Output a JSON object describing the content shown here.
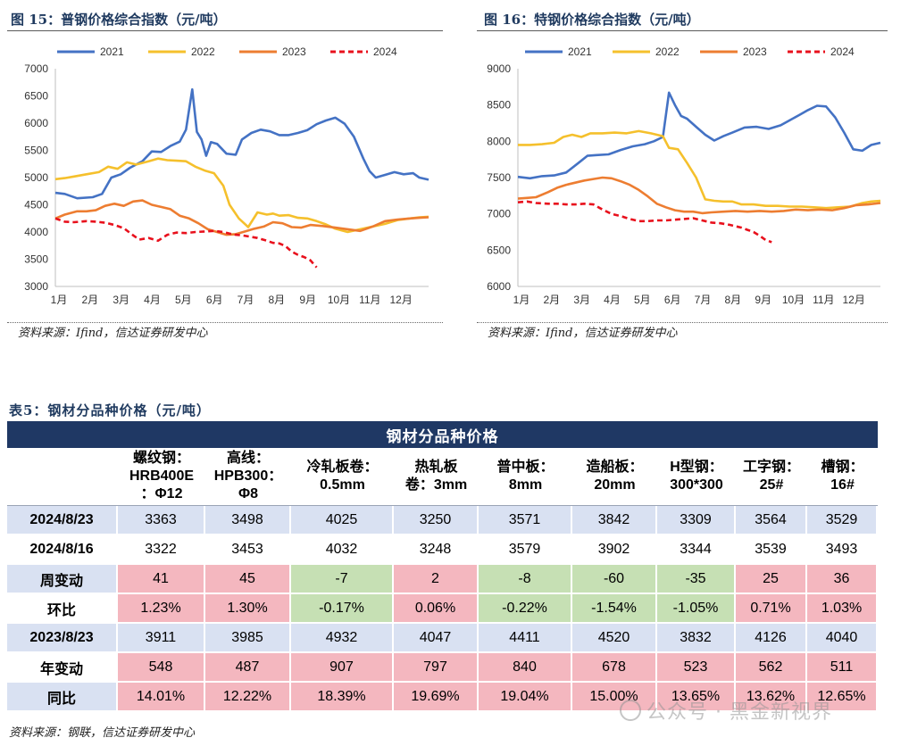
{
  "charts": [
    {
      "id": "fig15",
      "heading": "图 15：普钢价格综合指数（元/吨）",
      "source": "资料来源：Ifind，信达证券研发中心"
    },
    {
      "id": "fig16",
      "heading": "图 16：特钢价格综合指数（元/吨）",
      "source": "资料来源：Ifind，信达证券研发中心"
    }
  ],
  "chart_data": [
    {
      "type": "line",
      "title": "图 15：普钢价格综合指数（元/吨）",
      "xlabel": "",
      "ylabel": "元/吨",
      "ylim": [
        3000,
        7000
      ],
      "yticks": [
        "7000",
        "6500",
        "6000",
        "5500",
        "5000",
        "4500",
        "4000",
        "3500",
        "3000"
      ],
      "categories": [
        "1月",
        "2月",
        "3月",
        "4月",
        "5月",
        "6月",
        "7月",
        "8月",
        "9月",
        "10月",
        "11月",
        "12月"
      ],
      "legend": "top",
      "series": [
        {
          "name": "2021",
          "color": "#4472c4",
          "dash": false,
          "x": [
            0,
            0.3,
            0.7,
            1.2,
            1.5,
            1.8,
            2.1,
            2.4,
            2.8,
            3.1,
            3.4,
            3.7,
            4.0,
            4.2,
            4.4,
            4.55,
            4.7,
            4.85,
            5.0,
            5.2,
            5.5,
            5.8,
            6.0,
            6.3,
            6.6,
            6.9,
            7.2,
            7.5,
            7.8,
            8.1,
            8.4,
            8.7,
            9.0,
            9.3,
            9.6,
            9.9,
            10.1,
            10.3,
            10.6,
            10.9,
            11.2,
            11.5,
            11.7,
            12.0
          ],
          "values": [
            4720,
            4700,
            4620,
            4640,
            4700,
            5000,
            5060,
            5180,
            5300,
            5480,
            5470,
            5580,
            5660,
            5880,
            6620,
            5840,
            5700,
            5400,
            5650,
            5620,
            5440,
            5420,
            5700,
            5820,
            5880,
            5850,
            5780,
            5780,
            5820,
            5870,
            5980,
            6050,
            6100,
            5990,
            5750,
            5350,
            5120,
            5000,
            5050,
            5100,
            5060,
            5080,
            5000,
            4960
          ]
        },
        {
          "name": "2022",
          "color": "#f5c02c",
          "dash": false,
          "x": [
            0,
            0.3,
            0.6,
            1.0,
            1.4,
            1.7,
            2.0,
            2.3,
            2.6,
            3.0,
            3.3,
            3.6,
            3.9,
            4.2,
            4.5,
            4.8,
            5.1,
            5.4,
            5.6,
            5.9,
            6.2,
            6.5,
            6.8,
            7.0,
            7.2,
            7.5,
            7.8,
            8.1,
            8.4,
            8.7,
            9.0,
            9.4,
            9.8,
            10.2,
            10.6,
            11.0,
            11.4,
            11.7,
            12.0
          ],
          "values": [
            4970,
            4990,
            5020,
            5060,
            5100,
            5200,
            5160,
            5280,
            5240,
            5300,
            5350,
            5320,
            5310,
            5300,
            5200,
            5130,
            5080,
            4850,
            4500,
            4250,
            4090,
            4360,
            4320,
            4340,
            4300,
            4310,
            4260,
            4250,
            4200,
            4140,
            4060,
            4000,
            4050,
            4100,
            4150,
            4220,
            4250,
            4270,
            4280
          ]
        },
        {
          "name": "2023",
          "color": "#ed7d31",
          "dash": false,
          "x": [
            0,
            0.3,
            0.7,
            1.0,
            1.3,
            1.6,
            1.9,
            2.2,
            2.5,
            2.8,
            3.1,
            3.4,
            3.7,
            4.0,
            4.3,
            4.6,
            4.9,
            5.2,
            5.5,
            5.8,
            6.1,
            6.4,
            6.7,
            7.0,
            7.3,
            7.6,
            7.9,
            8.2,
            8.6,
            9.0,
            9.4,
            9.8,
            10.2,
            10.6,
            11.0,
            11.4,
            11.7,
            12.0
          ],
          "values": [
            4250,
            4320,
            4380,
            4380,
            4400,
            4480,
            4520,
            4480,
            4560,
            4580,
            4500,
            4460,
            4420,
            4300,
            4250,
            4160,
            4050,
            4000,
            3950,
            3960,
            4010,
            4060,
            4100,
            4180,
            4160,
            4090,
            4080,
            4130,
            4110,
            4080,
            4050,
            4020,
            4100,
            4200,
            4230,
            4250,
            4260,
            4270
          ]
        },
        {
          "name": "2024",
          "color": "#e8101c",
          "dash": true,
          "x": [
            0,
            0.3,
            0.6,
            1.0,
            1.3,
            1.6,
            1.9,
            2.2,
            2.5,
            2.7,
            3.0,
            3.3,
            3.6,
            3.9,
            4.2,
            4.5,
            4.8,
            5.1,
            5.4,
            5.6,
            5.8,
            6.0,
            6.2,
            6.5,
            6.8,
            7.0,
            7.2,
            7.4,
            7.6,
            7.8,
            8.0,
            8.2,
            8.4
          ],
          "values": [
            4250,
            4190,
            4180,
            4200,
            4190,
            4170,
            4130,
            4070,
            3940,
            3860,
            3890,
            3840,
            3950,
            3990,
            3980,
            4000,
            4010,
            4020,
            4000,
            3970,
            3950,
            3940,
            3920,
            3890,
            3840,
            3800,
            3790,
            3740,
            3640,
            3580,
            3540,
            3480,
            3350
          ]
        }
      ]
    },
    {
      "type": "line",
      "title": "图 16：特钢价格综合指数（元/吨）",
      "xlabel": "",
      "ylabel": "元/吨",
      "ylim": [
        6000,
        9000
      ],
      "yticks": [
        "9000",
        "8500",
        "8000",
        "7500",
        "7000",
        "6500",
        "6000"
      ],
      "categories": [
        "1月",
        "2月",
        "3月",
        "4月",
        "5月",
        "6月",
        "7月",
        "8月",
        "9月",
        "10月",
        "11月",
        "12月"
      ],
      "legend": "top",
      "series": [
        {
          "name": "2021",
          "color": "#4472c4",
          "dash": false,
          "x": [
            0,
            0.4,
            0.8,
            1.2,
            1.6,
            2.0,
            2.3,
            2.6,
            3.0,
            3.4,
            3.8,
            4.2,
            4.5,
            4.8,
            5.0,
            5.2,
            5.4,
            5.6,
            5.9,
            6.2,
            6.5,
            6.8,
            7.1,
            7.5,
            7.9,
            8.3,
            8.7,
            9.0,
            9.3,
            9.6,
            9.9,
            10.2,
            10.5,
            10.8,
            11.1,
            11.4,
            11.7,
            12.0
          ],
          "values": [
            7510,
            7490,
            7520,
            7530,
            7570,
            7700,
            7800,
            7810,
            7820,
            7880,
            7930,
            7960,
            8000,
            8060,
            8670,
            8500,
            8350,
            8310,
            8200,
            8090,
            8010,
            8070,
            8120,
            8190,
            8200,
            8170,
            8220,
            8290,
            8360,
            8430,
            8490,
            8480,
            8330,
            8120,
            7890,
            7870,
            7950,
            7980
          ]
        },
        {
          "name": "2022",
          "color": "#f5c02c",
          "dash": false,
          "x": [
            0,
            0.4,
            0.8,
            1.2,
            1.5,
            1.8,
            2.1,
            2.4,
            2.8,
            3.2,
            3.6,
            4.0,
            4.4,
            4.8,
            5.0,
            5.3,
            5.6,
            5.9,
            6.2,
            6.5,
            6.8,
            7.1,
            7.4,
            7.8,
            8.2,
            8.6,
            9.0,
            9.4,
            9.8,
            10.2,
            10.6,
            11.0,
            11.4,
            11.7,
            12.0
          ],
          "values": [
            7950,
            7950,
            7960,
            7980,
            8060,
            8090,
            8060,
            8110,
            8110,
            8120,
            8110,
            8140,
            8110,
            8070,
            7910,
            7890,
            7700,
            7500,
            7200,
            7180,
            7170,
            7170,
            7130,
            7130,
            7110,
            7110,
            7100,
            7100,
            7090,
            7080,
            7090,
            7100,
            7150,
            7170,
            7180
          ]
        },
        {
          "name": "2023",
          "color": "#ed7d31",
          "dash": false,
          "x": [
            0,
            0.3,
            0.6,
            1.0,
            1.3,
            1.6,
            1.9,
            2.2,
            2.5,
            2.8,
            3.1,
            3.4,
            3.7,
            4.0,
            4.3,
            4.6,
            4.9,
            5.2,
            5.5,
            5.8,
            6.1,
            6.4,
            6.8,
            7.2,
            7.6,
            8.0,
            8.4,
            8.8,
            9.2,
            9.6,
            10.0,
            10.4,
            10.8,
            11.2,
            11.6,
            12.0
          ],
          "values": [
            7210,
            7220,
            7230,
            7300,
            7360,
            7400,
            7430,
            7460,
            7480,
            7500,
            7490,
            7450,
            7400,
            7330,
            7240,
            7140,
            7090,
            7050,
            7030,
            7030,
            7010,
            7020,
            7030,
            7040,
            7030,
            7040,
            7030,
            7040,
            7060,
            7050,
            7060,
            7050,
            7080,
            7120,
            7130,
            7150
          ]
        },
        {
          "name": "2024",
          "color": "#e8101c",
          "dash": true,
          "x": [
            0,
            0.3,
            0.6,
            1.0,
            1.3,
            1.6,
            1.9,
            2.2,
            2.5,
            2.8,
            3.1,
            3.4,
            3.7,
            4.0,
            4.3,
            4.6,
            4.9,
            5.2,
            5.5,
            5.8,
            6.1,
            6.4,
            6.7,
            7.0,
            7.2,
            7.4,
            7.6,
            7.8,
            8.0,
            8.2,
            8.4
          ],
          "values": [
            7160,
            7170,
            7150,
            7140,
            7140,
            7130,
            7130,
            7140,
            7130,
            7060,
            7000,
            6970,
            6930,
            6900,
            6900,
            6910,
            6910,
            6920,
            6930,
            6940,
            6910,
            6880,
            6870,
            6850,
            6830,
            6810,
            6780,
            6750,
            6700,
            6640,
            6610
          ]
        }
      ]
    }
  ],
  "table": {
    "title": "表5：钢材分品种价格（元/吨）",
    "banner": "钢材分品种价格",
    "columns": [
      {
        "line1": "螺纹钢：",
        "line2": "HRB400E",
        "line3": "：Φ12"
      },
      {
        "line1": "高线：",
        "line2": "HPB300：",
        "line3": "Φ8"
      },
      {
        "line1": "冷轧板卷：",
        "line2": "0.5mm",
        "line3": ""
      },
      {
        "line1": "热轧板",
        "line2": "卷：3mm",
        "line3": ""
      },
      {
        "line1": "普中板：",
        "line2": "8mm",
        "line3": ""
      },
      {
        "line1": "造船板：",
        "line2": "20mm",
        "line3": ""
      },
      {
        "line1": "H型钢：",
        "line2": "300*300",
        "line3": ""
      },
      {
        "line1": "工字钢：",
        "line2": "25#",
        "line3": ""
      },
      {
        "line1": "槽钢：",
        "line2": "16#",
        "line3": ""
      }
    ],
    "rows": [
      {
        "label": "2024/8/23",
        "kind": "date",
        "values": [
          "3363",
          "3498",
          "4025",
          "3250",
          "3571",
          "3842",
          "3309",
          "3564",
          "3529"
        ]
      },
      {
        "label": "2024/8/16",
        "kind": "date-plain",
        "values": [
          "3322",
          "3453",
          "4032",
          "3248",
          "3579",
          "3902",
          "3344",
          "3539",
          "3493"
        ]
      },
      {
        "label": "周变动",
        "kind": "change",
        "values": [
          "41",
          "45",
          "-7",
          "2",
          "-8",
          "-60",
          "-35",
          "25",
          "36"
        ]
      },
      {
        "label": "环比",
        "kind": "change",
        "values": [
          "1.23%",
          "1.30%",
          "-0.17%",
          "0.06%",
          "-0.22%",
          "-1.54%",
          "-1.05%",
          "0.71%",
          "1.03%"
        ]
      },
      {
        "label": "2023/8/23",
        "kind": "date",
        "values": [
          "3911",
          "3985",
          "4932",
          "4047",
          "4411",
          "4520",
          "3832",
          "4126",
          "4040"
        ]
      },
      {
        "label": "年变动",
        "kind": "change",
        "values": [
          "548",
          "487",
          "907",
          "797",
          "840",
          "678",
          "523",
          "562",
          "511"
        ]
      },
      {
        "label": "同比",
        "kind": "change",
        "values": [
          "14.01%",
          "12.22%",
          "18.39%",
          "19.69%",
          "19.04%",
          "15.00%",
          "13.65%",
          "13.62%",
          "12.65%"
        ]
      }
    ],
    "source": "资料来源：钢联，信达证券研发中心"
  },
  "watermark": "公众号 · 黑金新视界",
  "colors": {
    "up": "#f4b7bf",
    "down": "#c6e0b4",
    "date_row": "#d9e1f2",
    "banner": "#1f3864"
  }
}
